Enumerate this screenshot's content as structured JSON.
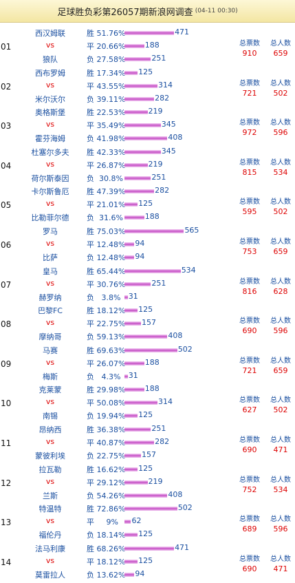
{
  "header": {
    "title": "足球胜负彩第26057期新浪网调查",
    "date": "(04-11 00:30)"
  },
  "labels": {
    "vs": "vs",
    "total_votes": "总票数",
    "total_people": "总人数"
  },
  "matches": [
    {
      "no": "01",
      "home": "西汉姆联",
      "away": "狼队",
      "options": [
        {
          "k": "胜",
          "p": "51.76%",
          "v": 471
        },
        {
          "k": "平",
          "p": "20.66%",
          "v": 188
        },
        {
          "k": "负",
          "p": "27.58%",
          "v": 251
        }
      ],
      "votes": 910,
      "people": 659
    },
    {
      "no": "02",
      "home": "西布罗姆",
      "away": "米尔沃尔",
      "options": [
        {
          "k": "胜",
          "p": "17.34%",
          "v": 125
        },
        {
          "k": "平",
          "p": "43.55%",
          "v": 314
        },
        {
          "k": "负",
          "p": "39.11%",
          "v": 282
        }
      ],
      "votes": 721,
      "people": 502
    },
    {
      "no": "03",
      "home": "奥格斯堡",
      "away": "霍芬海姆",
      "options": [
        {
          "k": "胜",
          "p": "22.53%",
          "v": 219
        },
        {
          "k": "平",
          "p": "35.49%",
          "v": 345
        },
        {
          "k": "负",
          "p": "41.98%",
          "v": 408
        }
      ],
      "votes": 972,
      "people": 596
    },
    {
      "no": "04",
      "home": "杜塞尔多夫",
      "away": "荷尔斯泰因",
      "options": [
        {
          "k": "胜",
          "p": "42.33%",
          "v": 345
        },
        {
          "k": "平",
          "p": "26.87%",
          "v": 219
        },
        {
          "k": "负",
          "p": " 30.8%",
          "v": 251
        }
      ],
      "votes": 815,
      "people": 534
    },
    {
      "no": "05",
      "home": "卡尔斯鲁厄",
      "away": "比勒菲尔德",
      "options": [
        {
          "k": "胜",
          "p": "47.39%",
          "v": 282
        },
        {
          "k": "平",
          "p": "21.01%",
          "v": 125
        },
        {
          "k": "负",
          "p": " 31.6%",
          "v": 188
        }
      ],
      "votes": 595,
      "people": 502
    },
    {
      "no": "06",
      "home": "罗马",
      "away": "比萨",
      "options": [
        {
          "k": "胜",
          "p": "75.03%",
          "v": 565
        },
        {
          "k": "平",
          "p": "12.48%",
          "v": 94
        },
        {
          "k": "负",
          "p": "12.48%",
          "v": 94
        }
      ],
      "votes": 753,
      "people": 659
    },
    {
      "no": "07",
      "home": "皇马",
      "away": "赫罗纳",
      "options": [
        {
          "k": "胜",
          "p": "65.44%",
          "v": 534
        },
        {
          "k": "平",
          "p": "30.76%",
          "v": 251
        },
        {
          "k": "负",
          "p": "  3.8%",
          "v": 31
        }
      ],
      "votes": 816,
      "people": 628
    },
    {
      "no": "08",
      "home": "巴黎FC",
      "away": "摩纳哥",
      "options": [
        {
          "k": "胜",
          "p": "18.12%",
          "v": 125
        },
        {
          "k": "平",
          "p": "22.75%",
          "v": 157
        },
        {
          "k": "负",
          "p": "59.13%",
          "v": 408
        }
      ],
      "votes": 690,
      "people": 596
    },
    {
      "no": "09",
      "home": "马赛",
      "away": "梅斯",
      "options": [
        {
          "k": "胜",
          "p": "69.63%",
          "v": 502
        },
        {
          "k": "平",
          "p": "26.07%",
          "v": 188
        },
        {
          "k": "负",
          "p": "  4.3%",
          "v": 31
        }
      ],
      "votes": 721,
      "people": 659
    },
    {
      "no": "10",
      "home": "克莱蒙",
      "away": "南锡",
      "options": [
        {
          "k": "胜",
          "p": "29.98%",
          "v": 188
        },
        {
          "k": "平",
          "p": "50.08%",
          "v": 314
        },
        {
          "k": "负",
          "p": "19.94%",
          "v": 125
        }
      ],
      "votes": 627,
      "people": 502
    },
    {
      "no": "11",
      "home": "昂纳西",
      "away": "蒙彼利埃",
      "options": [
        {
          "k": "胜",
          "p": "36.38%",
          "v": 251
        },
        {
          "k": "平",
          "p": "40.87%",
          "v": 282
        },
        {
          "k": "负",
          "p": "22.75%",
          "v": 157
        }
      ],
      "votes": 690,
      "people": 471
    },
    {
      "no": "12",
      "home": "拉瓦勒",
      "away": "兰斯",
      "options": [
        {
          "k": "胜",
          "p": "16.62%",
          "v": 125
        },
        {
          "k": "平",
          "p": "29.12%",
          "v": 219
        },
        {
          "k": "负",
          "p": "54.26%",
          "v": 408
        }
      ],
      "votes": 752,
      "people": 534
    },
    {
      "no": "13",
      "home": "特温特",
      "away": "福伦丹",
      "options": [
        {
          "k": "胜",
          "p": "72.86%",
          "v": 502
        },
        {
          "k": "平",
          "p": "    9%",
          "v": 62
        },
        {
          "k": "负",
          "p": "18.14%",
          "v": 125
        }
      ],
      "votes": 689,
      "people": 596
    },
    {
      "no": "14",
      "home": "法马利康",
      "away": "莫雷拉人",
      "options": [
        {
          "k": "胜",
          "p": "68.26%",
          "v": 471
        },
        {
          "k": "平",
          "p": "18.12%",
          "v": 125
        },
        {
          "k": "负",
          "p": "13.62%",
          "v": 94
        }
      ],
      "votes": 690,
      "people": 471
    }
  ]
}
